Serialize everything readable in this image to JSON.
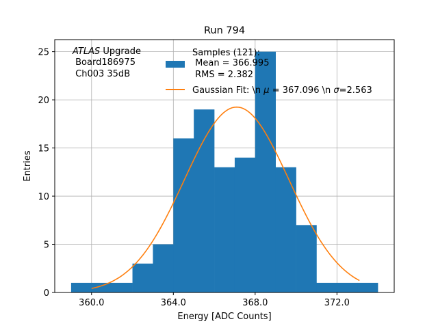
{
  "chart_data": {
    "type": "histogram",
    "title": "Run 794",
    "xlabel": "Energy [ADC Counts]",
    "ylabel": "Entries",
    "xlim": [
      358.2,
      374.8
    ],
    "ylim": [
      0,
      26.25
    ],
    "x_ticks": [
      360.0,
      364.0,
      368.0,
      372.0
    ],
    "x_tick_labels": [
      "360.0",
      "364.0",
      "368.0",
      "372.0"
    ],
    "y_ticks": [
      0,
      5,
      10,
      15,
      20,
      25
    ],
    "y_tick_labels": [
      "0",
      "5",
      "10",
      "15",
      "20",
      "25"
    ],
    "grid": true,
    "bins": [
      {
        "x0": 359,
        "x1": 360,
        "count": 1
      },
      {
        "x0": 360,
        "x1": 361,
        "count": 1
      },
      {
        "x0": 361,
        "x1": 362,
        "count": 1
      },
      {
        "x0": 362,
        "x1": 363,
        "count": 3
      },
      {
        "x0": 363,
        "x1": 364,
        "count": 5
      },
      {
        "x0": 364,
        "x1": 365,
        "count": 16
      },
      {
        "x0": 365,
        "x1": 366,
        "count": 19
      },
      {
        "x0": 366,
        "x1": 367,
        "count": 13
      },
      {
        "x0": 367,
        "x1": 368,
        "count": 14
      },
      {
        "x0": 368,
        "x1": 369,
        "count": 25
      },
      {
        "x0": 369,
        "x1": 370,
        "count": 13
      },
      {
        "x0": 370,
        "x1": 371,
        "count": 7
      },
      {
        "x0": 371,
        "x1": 372,
        "count": 1
      },
      {
        "x0": 372,
        "x1": 373,
        "count": 1
      },
      {
        "x0": 373,
        "x1": 374,
        "count": 1
      }
    ],
    "fit": {
      "name": "Gaussian Fit",
      "mu": 367.096,
      "sigma": 2.563,
      "amplitude": 19.25,
      "x_range": [
        360.0,
        373.1
      ]
    },
    "colors": {
      "bars": "#1f77b4",
      "fit": "#ff7f0e",
      "grid": "#b0b0b0"
    },
    "annotation_lines": [
      {
        "prefix": "",
        "italic": "ATLAS",
        "suffix": " Upgrade"
      },
      {
        "prefix": " Board186975",
        "italic": "",
        "suffix": ""
      },
      {
        "prefix": " Ch003 35dB",
        "italic": "",
        "suffix": ""
      }
    ],
    "legend": {
      "position": "top-right",
      "histogram_lines": [
        "Samples (121):",
        " Mean = 366.995",
        " RMS = 2.382"
      ],
      "fit_label": {
        "prefix": "Gaussian Fit: \\n ",
        "mu_symbol": "μ",
        "middle": " = 367.096 \\n ",
        "sigma_symbol": "σ",
        "suffix": "=2.563"
      }
    }
  }
}
